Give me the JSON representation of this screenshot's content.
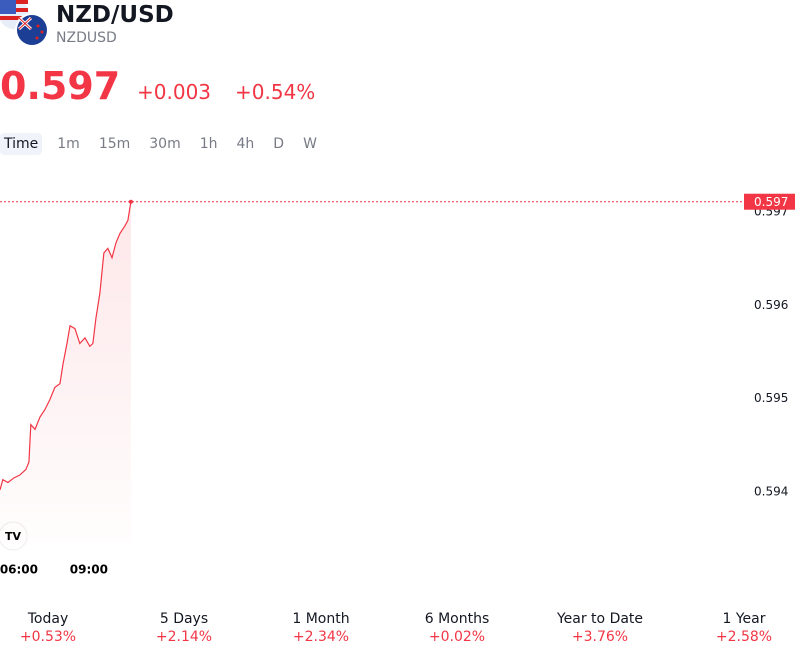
{
  "header": {
    "title": "NZD/USD",
    "symbol": "NZDUSD",
    "price": "0.597",
    "change": "+0.003",
    "change_percent": "+0.54%"
  },
  "intervals": [
    "Time",
    "1m",
    "15m",
    "30m",
    "1h",
    "4h",
    "D",
    "W"
  ],
  "chart_data": {
    "type": "line",
    "color": "#f23645",
    "x": [
      5.19,
      5.31,
      5.53,
      5.79,
      6.04,
      6.3,
      6.43,
      6.51,
      6.69,
      6.9,
      7.11,
      7.33,
      7.54,
      7.76,
      7.89,
      8.06,
      8.19,
      8.4,
      8.61,
      8.83,
      9.04,
      9.17,
      9.3,
      9.47,
      9.64,
      9.81,
      9.99,
      10.16,
      10.33,
      10.54,
      10.67,
      10.8
    ],
    "values": [
      0.59402,
      0.59413,
      0.5941,
      0.59415,
      0.59418,
      0.59424,
      0.59432,
      0.59472,
      0.59467,
      0.5948,
      0.59488,
      0.59499,
      0.59512,
      0.59516,
      0.59537,
      0.59559,
      0.59578,
      0.59575,
      0.59559,
      0.59565,
      0.59556,
      0.59559,
      0.59586,
      0.59613,
      0.59656,
      0.59661,
      0.59651,
      0.59667,
      0.59677,
      0.59685,
      0.59691,
      0.59711
    ],
    "xlim": [
      5.19,
      36.9
    ],
    "xticks": [
      {
        "value": 6,
        "label": "06:00"
      },
      {
        "value": 9,
        "label": "09:00"
      }
    ],
    "ylim": [
      0.59343,
      0.59745
    ],
    "yticks": [
      0.594,
      0.595,
      0.596,
      0.597
    ]
  },
  "periods": [
    {
      "label": "Today",
      "change": "+0.53%"
    },
    {
      "label": "5 Days",
      "change": "+2.14%"
    },
    {
      "label": "1 Month",
      "change": "+2.34%"
    },
    {
      "label": "6 Months",
      "change": "+0.02%"
    },
    {
      "label": "Year to Date",
      "change": "+3.76%"
    },
    {
      "label": "1 Year",
      "change": "+2.58%"
    }
  ]
}
